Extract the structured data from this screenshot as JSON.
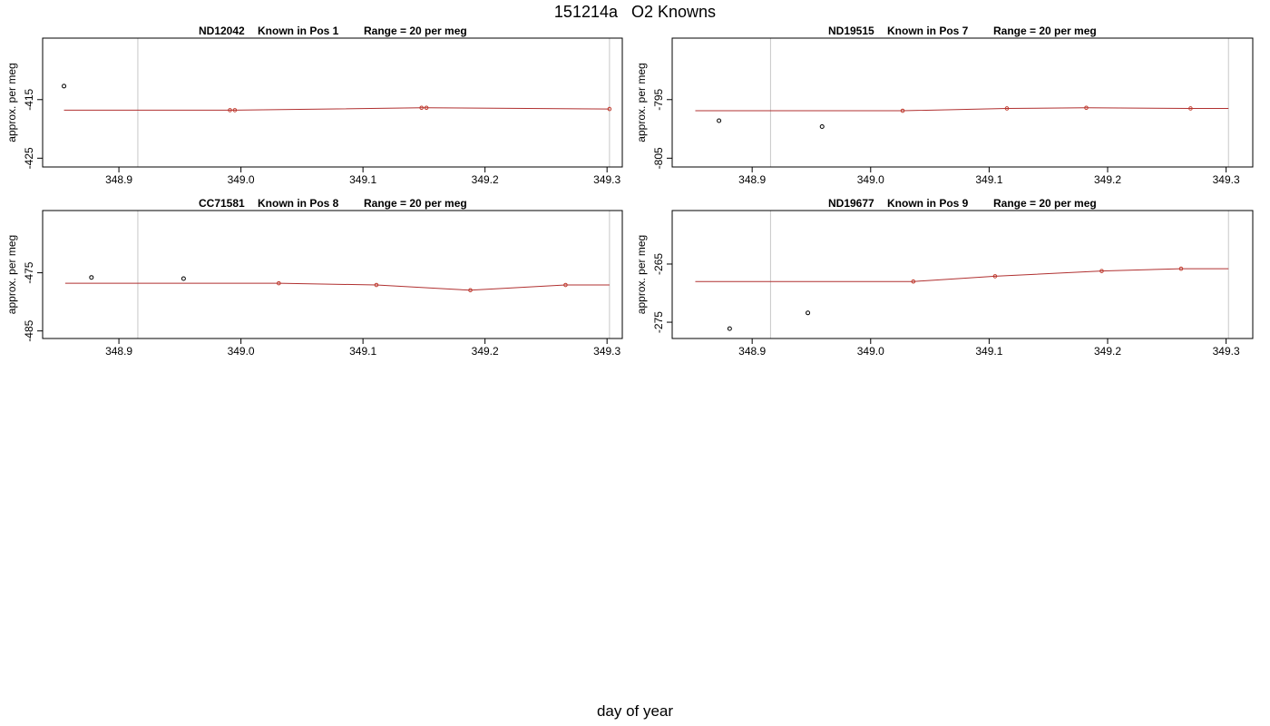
{
  "title": "151214a   O2 Knowns",
  "xlabel": "day of year",
  "colors": {
    "fit_line": "#b03030",
    "fit_point": "#c0392b",
    "raw_point": "#000000",
    "ref_line": "#c8c8c8",
    "frame": "#000000"
  },
  "chart_data": [
    {
      "type": "scatter",
      "title_parts": [
        "ND12042",
        "Known in Pos 1",
        "Range = 20 per meg"
      ],
      "ylabel": "approx. per meg",
      "xlim": [
        348.8375,
        349.3125
      ],
      "ylim": [
        -426.5,
        -404.5
      ],
      "xticks": [
        348.9,
        349.0,
        349.1,
        349.2,
        349.3
      ],
      "xtick_labels": [
        "348.9",
        "349.0",
        "349.1",
        "349.2",
        "349.3"
      ],
      "yticks": [
        -415,
        -425
      ],
      "ytick_labels": [
        "-415",
        "-425"
      ],
      "reference_lines_x": [
        348.9155,
        349.302
      ],
      "raw_points": {
        "x": [
          348.855
        ],
        "y": [
          -412.7
        ]
      },
      "fit_points": {
        "x": [
          348.991,
          348.995,
          349.148,
          349.152,
          349.302
        ],
        "y": [
          -416.8,
          -416.8,
          -416.4,
          -416.4,
          -416.6
        ]
      },
      "fit_line": {
        "x": [
          348.855,
          348.991,
          348.995,
          349.148,
          349.152,
          349.302
        ],
        "y": [
          -416.8,
          -416.8,
          -416.8,
          -416.4,
          -416.4,
          -416.6
        ]
      }
    },
    {
      "type": "scatter",
      "title_parts": [
        "ND19515",
        "Known in Pos 7",
        "Range = 20 per meg"
      ],
      "ylabel": "approx. per meg",
      "xlim": [
        348.8325,
        349.3225
      ],
      "ylim": [
        -806.5,
        -784.5
      ],
      "xticks": [
        348.9,
        349.0,
        349.1,
        349.2,
        349.3
      ],
      "xtick_labels": [
        "348.9",
        "349.0",
        "349.1",
        "349.2",
        "349.3"
      ],
      "yticks": [
        -795,
        -805
      ],
      "ytick_labels": [
        "-795",
        "-805"
      ],
      "reference_lines_x": [
        348.9155,
        349.302
      ],
      "raw_points": {
        "x": [
          348.872,
          348.959
        ],
        "y": [
          -798.6,
          -799.6
        ]
      },
      "fit_points": {
        "x": [
          349.027,
          349.115,
          349.182,
          349.27
        ],
        "y": [
          -796.9,
          -796.5,
          -796.4,
          -796.5
        ]
      },
      "fit_line": {
        "x": [
          348.852,
          349.027,
          349.115,
          349.182,
          349.27,
          349.302
        ],
        "y": [
          -796.9,
          -796.9,
          -796.5,
          -796.4,
          -796.5,
          -796.5
        ]
      }
    },
    {
      "type": "scatter",
      "title_parts": [
        "CC71581",
        "Known in Pos 8",
        "Range = 20 per meg"
      ],
      "ylabel": "approx. per meg",
      "xlim": [
        348.8375,
        349.3125
      ],
      "ylim": [
        -486.3,
        -464.3
      ],
      "xticks": [
        348.9,
        349.0,
        349.1,
        349.2,
        349.3
      ],
      "xtick_labels": [
        "348.9",
        "349.0",
        "349.1",
        "349.2",
        "349.3"
      ],
      "yticks": [
        -475,
        -485
      ],
      "ytick_labels": [
        "-475",
        "-485"
      ],
      "reference_lines_x": [
        348.9155,
        349.302
      ],
      "raw_points": {
        "x": [
          348.8775,
          348.953
        ],
        "y": [
          -475.8,
          -476.0
        ]
      },
      "fit_points": {
        "x": [
          349.031,
          349.111,
          349.188,
          349.266
        ],
        "y": [
          -476.8,
          -477.1,
          -478.0,
          -477.1
        ]
      },
      "fit_line": {
        "x": [
          348.856,
          349.031,
          349.111,
          349.188,
          349.266,
          349.302
        ],
        "y": [
          -476.8,
          -476.8,
          -477.1,
          -478.0,
          -477.1,
          -477.1
        ]
      }
    },
    {
      "type": "scatter",
      "title_parts": [
        "ND19677",
        "Known in Pos 9",
        "Range = 20 per meg"
      ],
      "ylabel": "approx. per meg",
      "xlim": [
        348.8325,
        349.3225
      ],
      "ylim": [
        -277.8,
        -255.8
      ],
      "xticks": [
        348.9,
        349.0,
        349.1,
        349.2,
        349.3
      ],
      "xtick_labels": [
        "348.9",
        "349.0",
        "349.1",
        "349.2",
        "349.3"
      ],
      "yticks": [
        -265,
        -275
      ],
      "ytick_labels": [
        "-265",
        "-275"
      ],
      "reference_lines_x": [
        348.9155,
        349.302
      ],
      "raw_points": {
        "x": [
          348.881,
          348.947
        ],
        "y": [
          -276.1,
          -273.4
        ]
      },
      "fit_points": {
        "x": [
          349.036,
          349.105,
          349.195,
          349.262
        ],
        "y": [
          -268.0,
          -267.1,
          -266.2,
          -265.8
        ]
      },
      "fit_line": {
        "x": [
          348.852,
          349.036,
          349.105,
          349.195,
          349.262,
          349.302
        ],
        "y": [
          -268.0,
          -268.0,
          -267.1,
          -266.2,
          -265.8,
          -265.8
        ]
      }
    }
  ]
}
